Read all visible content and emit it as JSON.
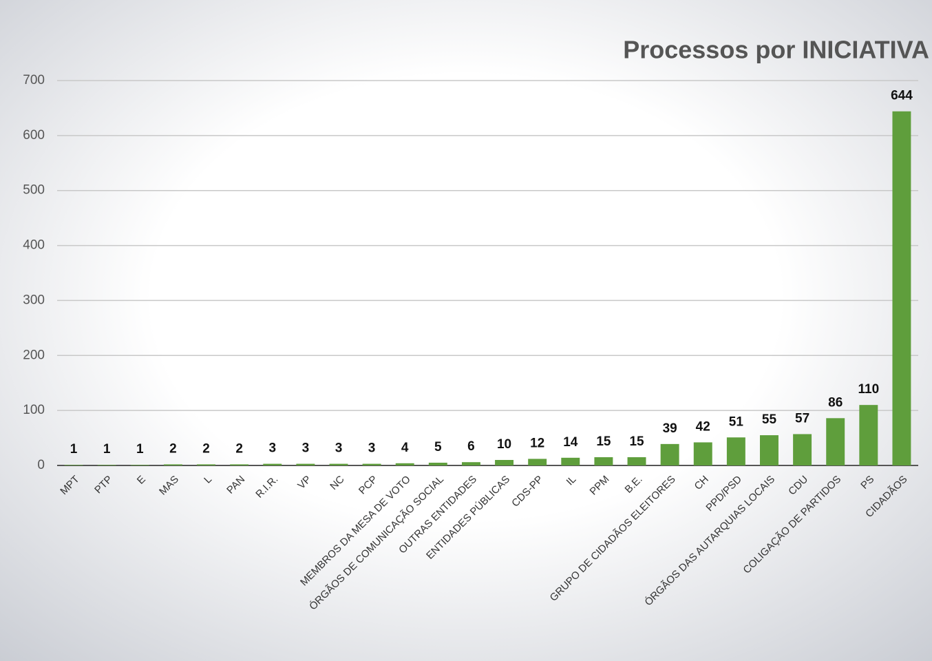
{
  "chart_data": {
    "type": "bar",
    "title": "Processos por INICIATIVA",
    "categories": [
      "MPT",
      "PTP",
      "E",
      "MAS",
      "L",
      "PAN",
      "R.I.R.",
      "VP",
      "NC",
      "PCP",
      "MEMBROS DA MESA DE VOTO",
      "ÓRGÃOS DE COMUNICAÇÃO SOCIAL",
      "OUTRAS ENTIDADES",
      "ENTIDADES PÚBLICAS",
      "CDS-PP",
      "IL",
      "PPM",
      "B.E.",
      "GRUPO DE CIDADÃOS ELEITORES",
      "CH",
      "PPD/PSD",
      "ÓRGÃOS DAS AUTARQUIAS LOCAIS",
      "CDU",
      "COLIGAÇÃO DE PARTIDOS",
      "PS",
      "CIDADÃOS"
    ],
    "values": [
      1,
      1,
      1,
      2,
      2,
      2,
      3,
      3,
      3,
      3,
      4,
      5,
      6,
      10,
      12,
      14,
      15,
      15,
      39,
      42,
      51,
      55,
      57,
      86,
      110,
      644
    ],
    "color": "#5f9e3c",
    "ylim": [
      0,
      700
    ],
    "yticks": [
      0,
      100,
      200,
      300,
      400,
      500,
      600,
      700
    ],
    "grid": true
  }
}
